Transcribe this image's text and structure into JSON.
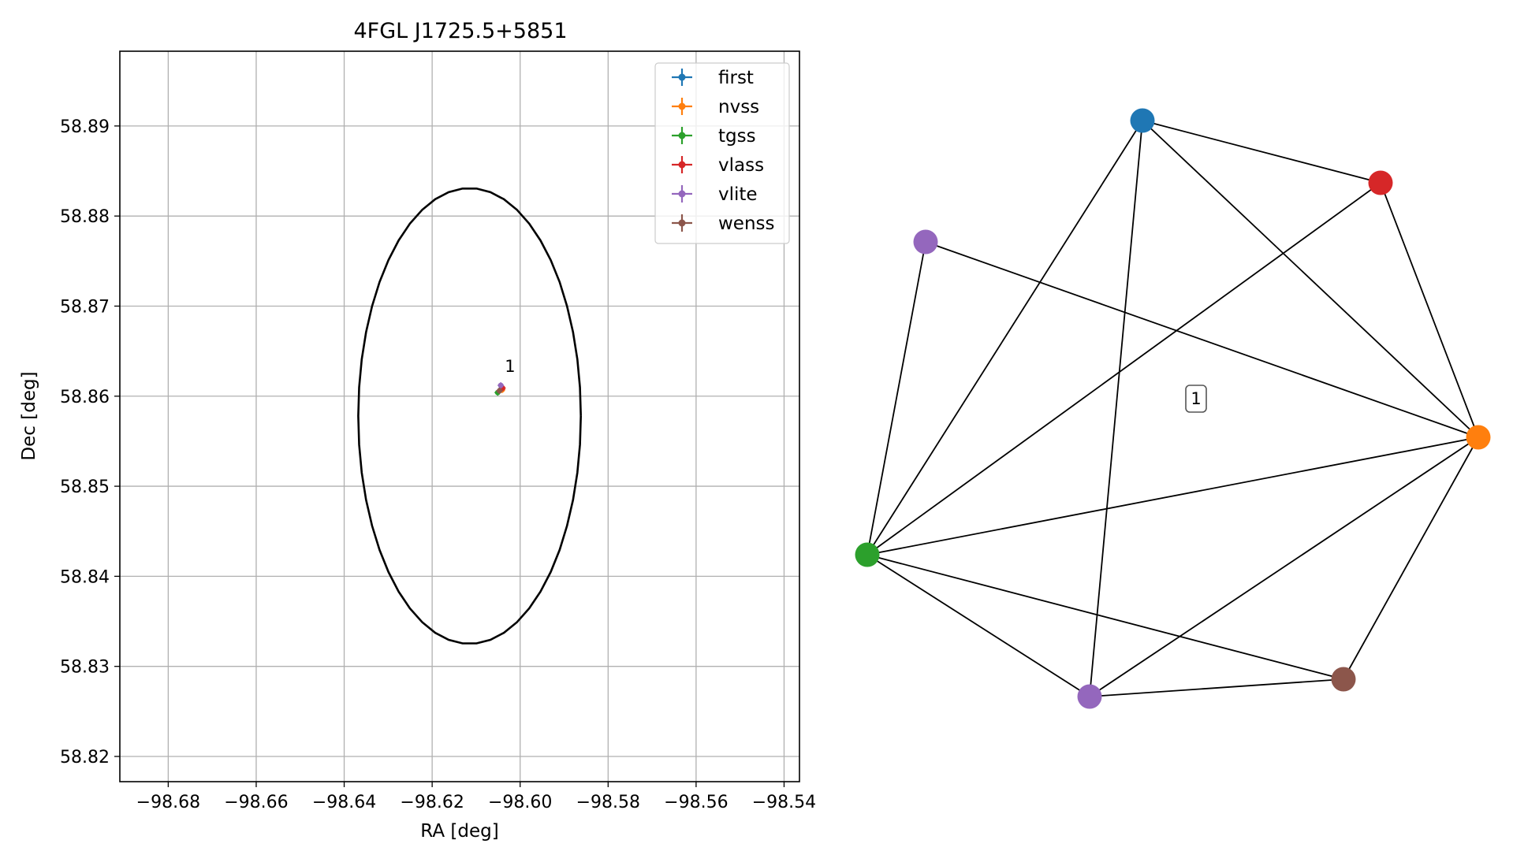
{
  "chart_data": [
    {
      "type": "scatter",
      "title": "4FGL J1725.5+5851",
      "xlabel": "RA [deg]",
      "ylabel": "Dec [deg]",
      "xlim": [
        -98.691,
        -98.5365
      ],
      "ylim": [
        58.8172,
        58.8983
      ],
      "xticks": [
        -98.68,
        -98.66,
        -98.64,
        -98.62,
        -98.6,
        -98.58,
        -98.56,
        -98.54
      ],
      "xtick_labels": [
        "−98.68",
        "−98.66",
        "−98.64",
        "−98.62",
        "−98.60",
        "−98.58",
        "−98.56",
        "−98.54"
      ],
      "yticks": [
        58.82,
        58.83,
        58.84,
        58.85,
        58.86,
        58.87,
        58.88,
        58.89
      ],
      "ytick_labels": [
        "58.82",
        "58.83",
        "58.84",
        "58.85",
        "58.86",
        "58.87",
        "58.88",
        "58.89"
      ],
      "grid": true,
      "legend_position": "top-right",
      "series": [
        {
          "name": "first",
          "color": "#1f77b4",
          "x": [
            -98.6043
          ],
          "y": [
            58.8608
          ]
        },
        {
          "name": "nvss",
          "color": "#ff7f0e",
          "x": [
            -98.6041
          ],
          "y": [
            58.8607
          ]
        },
        {
          "name": "tgss",
          "color": "#2ca02c",
          "x": [
            -98.6051
          ],
          "y": [
            58.8604
          ]
        },
        {
          "name": "vlass",
          "color": "#d62728",
          "x": [
            -98.604
          ],
          "y": [
            58.8609
          ]
        },
        {
          "name": "vlite",
          "color": "#9467bd",
          "x": [
            -98.6044
          ],
          "y": [
            58.8612
          ]
        },
        {
          "name": "wenss",
          "color": "#8c564b",
          "x": [
            -98.6047
          ],
          "y": [
            58.8606
          ]
        }
      ],
      "ellipse": {
        "center": [
          -98.6115,
          58.8578
        ],
        "semi_axis_ra_deg": 0.0253,
        "semi_axis_dec_deg": 0.0253,
        "color": "#000000"
      },
      "annotations": [
        {
          "text": "1",
          "x": -98.6035,
          "y": 58.8627
        }
      ]
    },
    {
      "type": "network",
      "nodes": [
        {
          "name": "first",
          "color": "#1f77b4"
        },
        {
          "name": "vlass",
          "color": "#d62728"
        },
        {
          "name": "vlite",
          "color": "#9467bd"
        },
        {
          "name": "nvss",
          "color": "#ff7f0e"
        },
        {
          "name": "tgss",
          "color": "#2ca02c"
        },
        {
          "name": "vlite",
          "color": "#9467bd"
        },
        {
          "name": "wenss",
          "color": "#8c564b"
        }
      ],
      "edges": [
        [
          0,
          1
        ],
        [
          0,
          3
        ],
        [
          0,
          4
        ],
        [
          0,
          5
        ],
        [
          1,
          3
        ],
        [
          1,
          4
        ],
        [
          2,
          3
        ],
        [
          2,
          4
        ],
        [
          3,
          4
        ],
        [
          3,
          5
        ],
        [
          3,
          6
        ],
        [
          4,
          5
        ],
        [
          4,
          6
        ],
        [
          5,
          6
        ]
      ],
      "label": "1"
    }
  ]
}
